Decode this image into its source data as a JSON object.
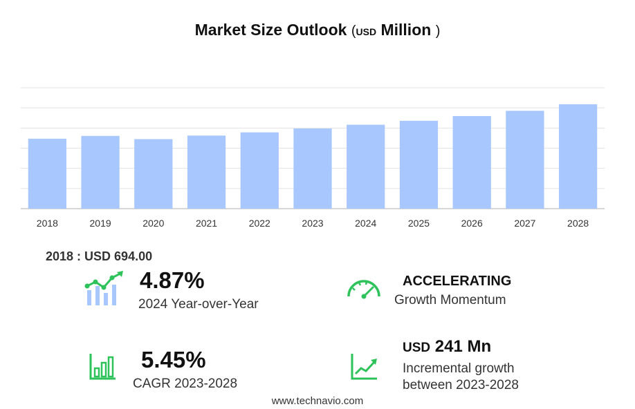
{
  "title": {
    "main": "Market Size Outlook",
    "open": "(",
    "unit": "USD",
    "million": "Million",
    "close": ")"
  },
  "baseline_label": "2018 : USD  694.00",
  "stats": {
    "yoy_value": "4.87%",
    "yoy_label": "2024 Year-over-Year",
    "momentum_value": "ACCELERATING",
    "momentum_label": "Growth Momentum",
    "cagr_value": "5.45%",
    "cagr_label": "CAGR 2023-2028",
    "incremental_currency": "USD",
    "incremental_value": "241 Mn",
    "incremental_label_1": "Incremental growth",
    "incremental_label_2": "between 2023-2028"
  },
  "icons": {
    "yoy": "bar-trend-icon",
    "momentum": "speedometer-icon",
    "cagr": "bar-chart-icon",
    "incremental": "line-growth-icon"
  },
  "colors": {
    "bar": "#a7c7fe",
    "accent": "#2ec25a",
    "grid": "#e3e3e3"
  },
  "source": "www.technavio.com",
  "chart_data": {
    "type": "bar",
    "categories": [
      "2018",
      "2019",
      "2020",
      "2021",
      "2022",
      "2023",
      "2024",
      "2025",
      "2026",
      "2027",
      "2028"
    ],
    "values": [
      694,
      722,
      690,
      725,
      757,
      795,
      833,
      872,
      919,
      971,
      1036
    ],
    "ylim": [
      0,
      1200
    ],
    "grid": true,
    "y_tick_labels_shown": false
  }
}
